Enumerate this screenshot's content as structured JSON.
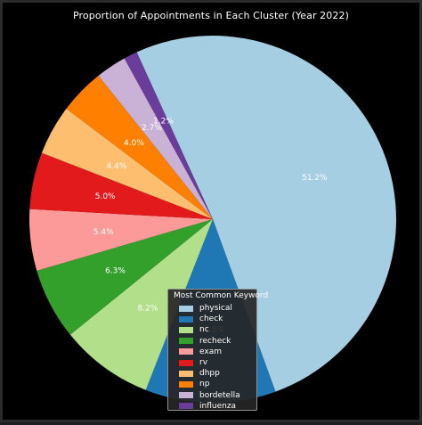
{
  "chart_data": {
    "type": "pie",
    "title": "Proportion of Appointments in Each Cluster (Year 2022)",
    "legend_title": "Most Common Keyword",
    "legend_placement": "bottom-center",
    "series": [
      {
        "name": "physical",
        "value": 51.2,
        "label": "51.2%",
        "color": "#a6cee3"
      },
      {
        "name": "check",
        "value": 11.5,
        "label": "11.5%",
        "color": "#1f78b4"
      },
      {
        "name": "nc",
        "value": 8.2,
        "label": "8.2%",
        "color": "#b2df8a"
      },
      {
        "name": "recheck",
        "value": 6.3,
        "label": "6.3%",
        "color": "#33a02c"
      },
      {
        "name": "exam",
        "value": 5.4,
        "label": "5.4%",
        "color": "#fb9a99"
      },
      {
        "name": "rv",
        "value": 5.0,
        "label": "5.0%",
        "color": "#e31a1c"
      },
      {
        "name": "dhpp",
        "value": 4.4,
        "label": "4.4%",
        "color": "#fdbf6f"
      },
      {
        "name": "np",
        "value": 4.0,
        "label": "4.0%",
        "color": "#ff7f00"
      },
      {
        "name": "bordetella",
        "value": 2.7,
        "label": "2.7%",
        "color": "#cab2d6"
      },
      {
        "name": "influenza",
        "value": 1.2,
        "label": "1.2%",
        "color": "#6a3d9a"
      }
    ]
  }
}
